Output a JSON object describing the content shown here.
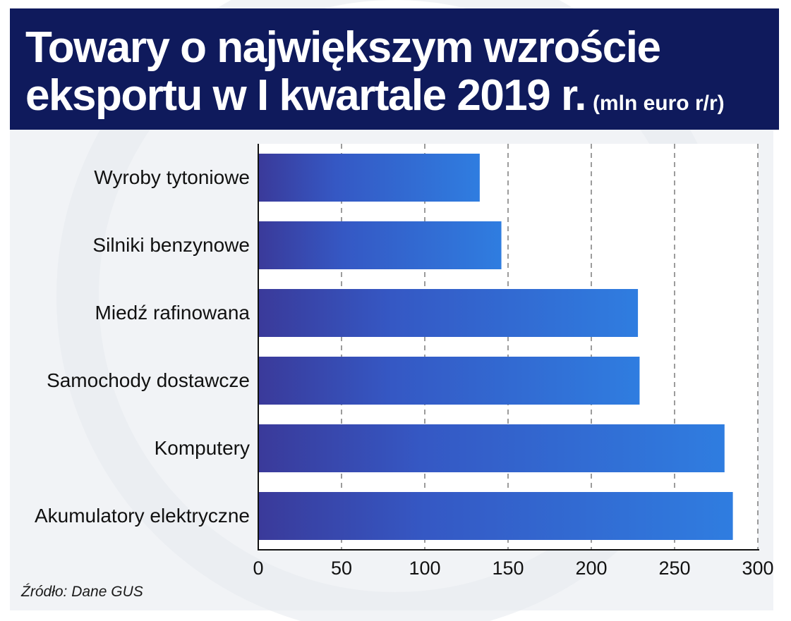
{
  "header": {
    "title_line1": "Towary o największym wzroście",
    "title_line2": "eksportu w I kwartale 2019 r.",
    "unit": "(mln euro r/r)"
  },
  "source": "Źródło: Dane GUS",
  "colors": {
    "header_bg": "#0f1a5c",
    "bar_start": "#3a3a9a",
    "bar_end": "#2f7de0",
    "panel_bg": "#f1f3f6"
  },
  "chart_data": {
    "type": "bar",
    "orientation": "horizontal",
    "categories": [
      "Wyroby tytoniowe",
      "Silniki benzynowe",
      "Miedź rafinowana",
      "Samochody dostawcze",
      "Komputery",
      "Akumulatory elektryczne"
    ],
    "values": [
      133,
      146,
      228,
      229,
      280,
      285
    ],
    "xlim": [
      0,
      300
    ],
    "xticks": [
      0,
      50,
      100,
      150,
      200,
      250,
      300
    ],
    "grid": "vertical dashed",
    "legend": "none"
  }
}
